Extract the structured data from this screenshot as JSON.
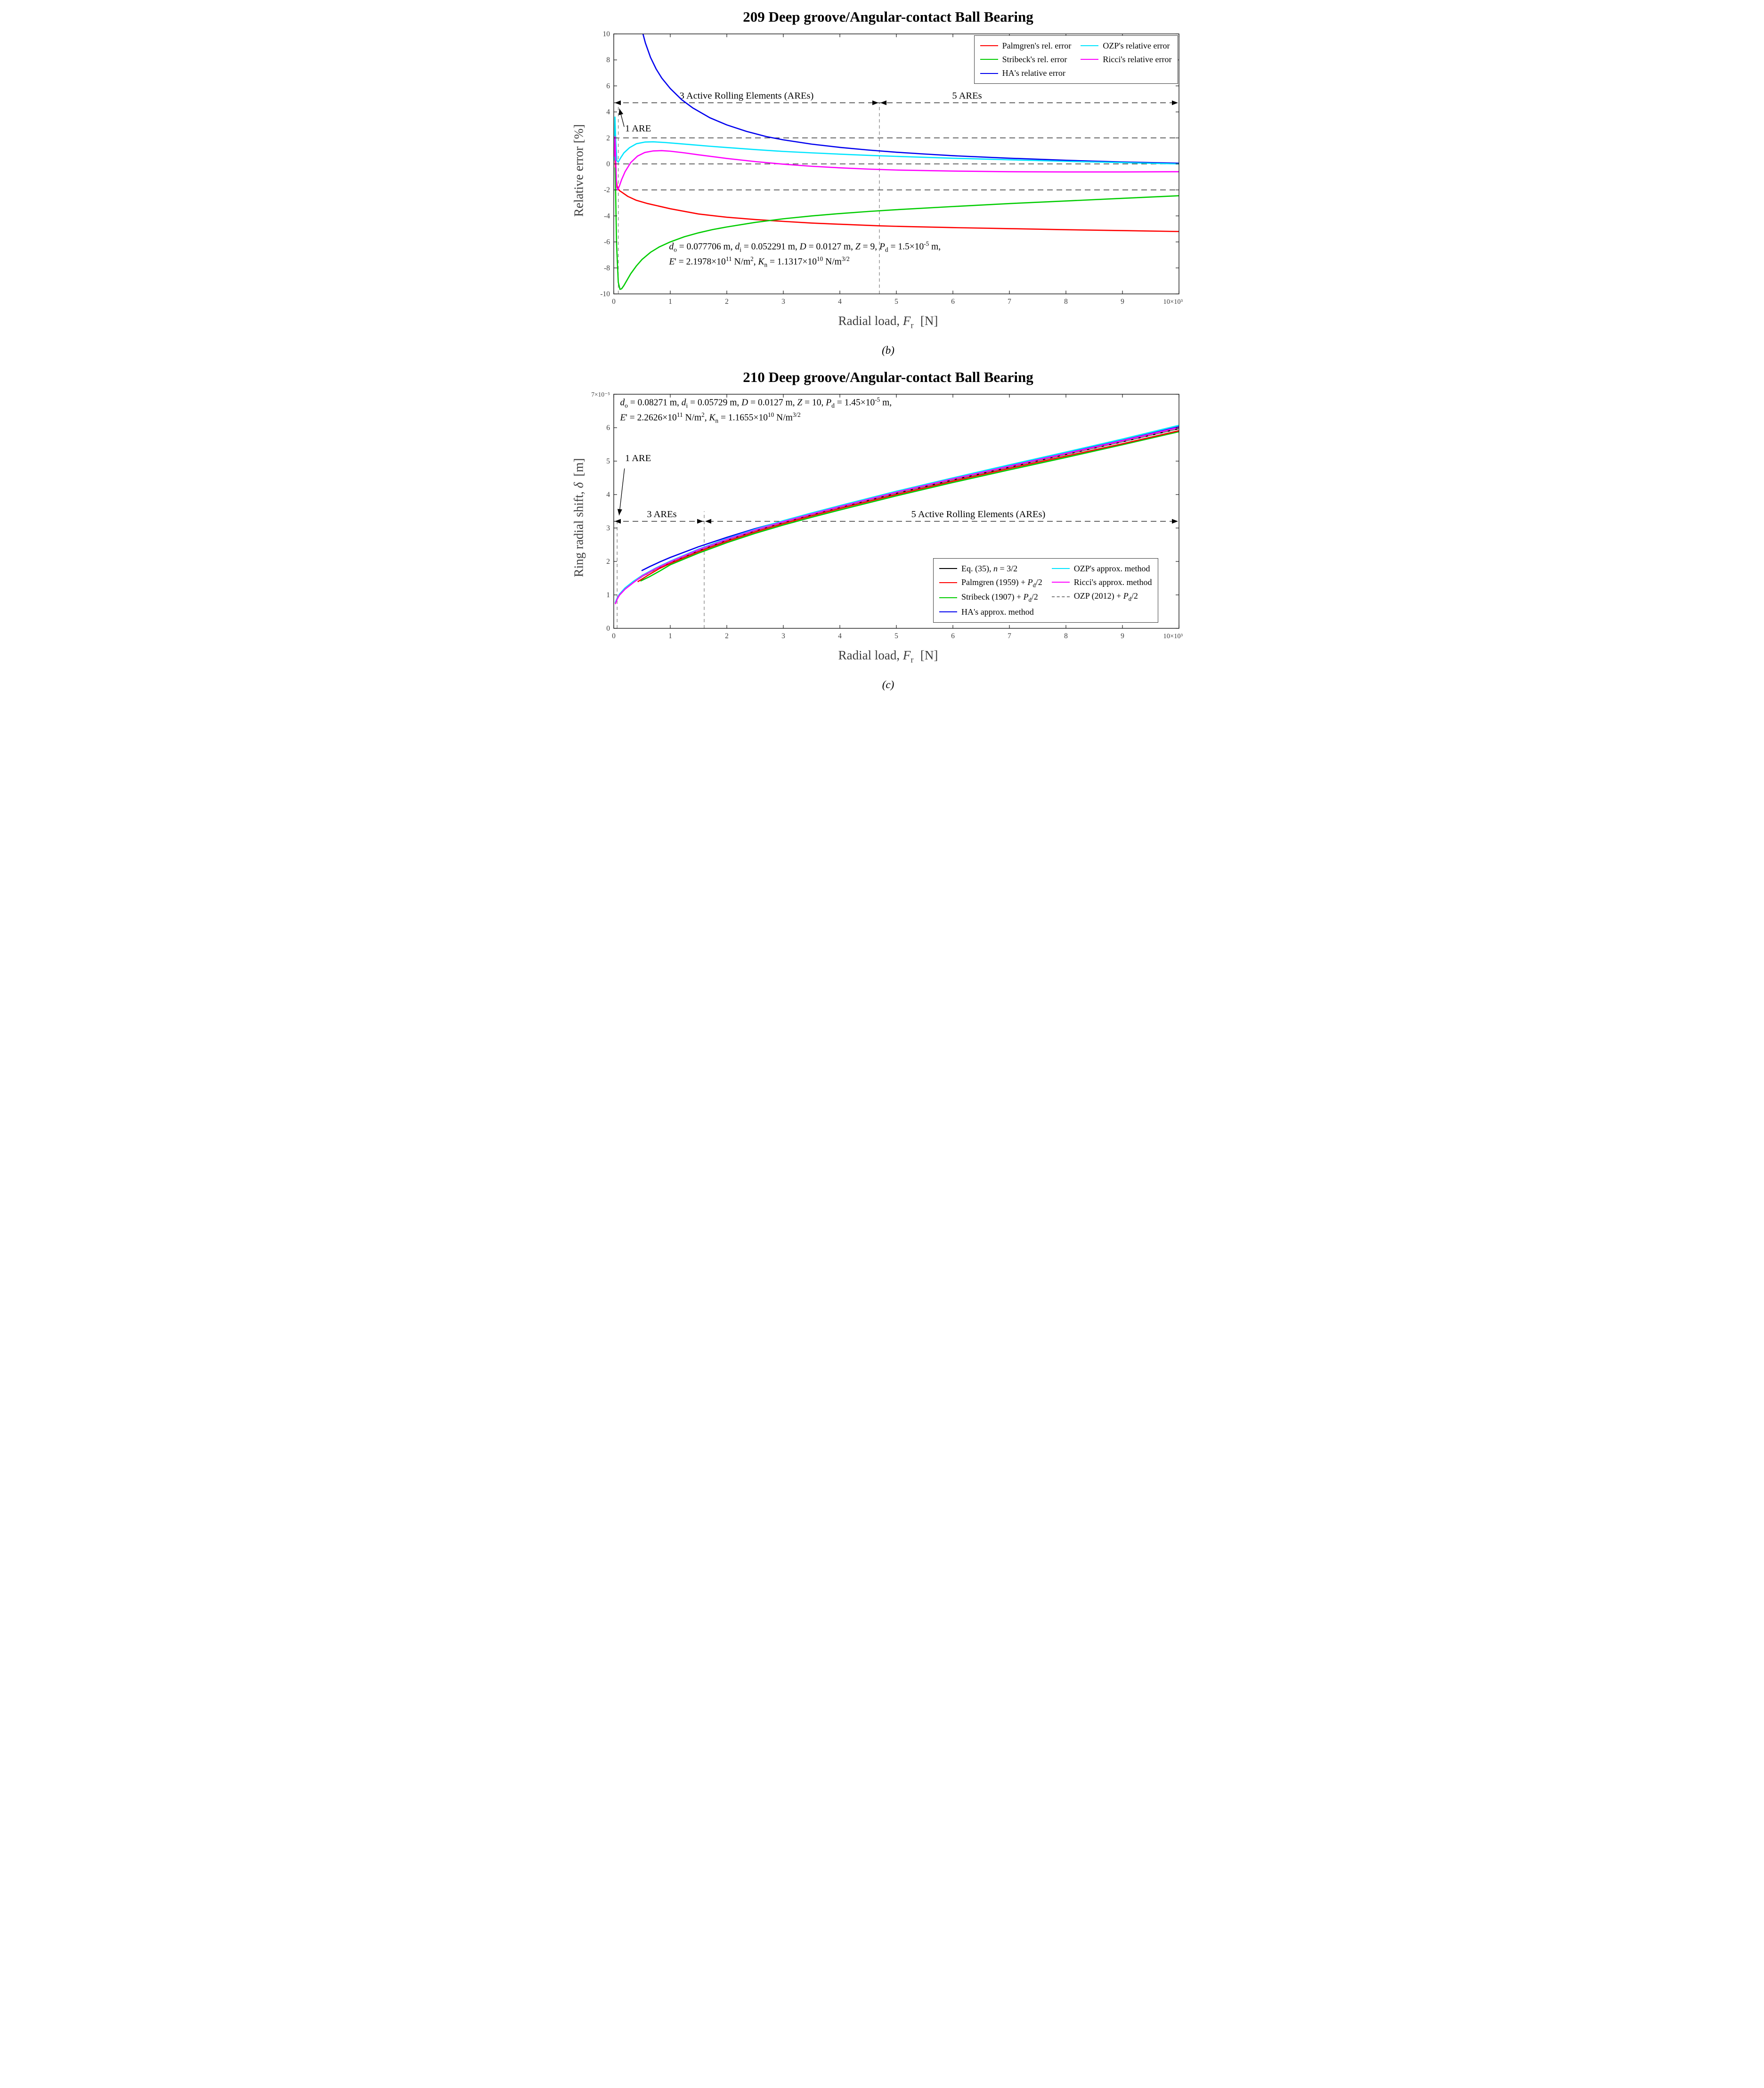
{
  "figure": {
    "sub_labels": [
      "(b)",
      "(c)"
    ]
  },
  "chart_data": [
    {
      "type": "line",
      "title": "209 Deep groove/Angular-contact Ball Bearing",
      "fig_label": "(b)",
      "xlabel_html": "Radial load, <i>F</i><sub>r</sub>&#8202; &#8201;[N]",
      "ylabel_html": "Relative error [%]",
      "xlim": [
        0,
        10000
      ],
      "ylim": [
        -10,
        10
      ],
      "x_ticks": [
        0,
        1000,
        2000,
        3000,
        4000,
        5000,
        6000,
        7000,
        8000,
        9000,
        10000
      ],
      "x_tick_labels": [
        "0",
        "1",
        "2",
        "3",
        "4",
        "5",
        "6",
        "7",
        "8",
        "9",
        "10×10³"
      ],
      "y_ticks": [
        -10,
        -8,
        -6,
        -4,
        -2,
        0,
        2,
        4,
        6,
        8,
        10
      ],
      "y_tick_labels": [
        "-10",
        "-8",
        "-6",
        "-4",
        "-2",
        "0",
        "2",
        "4",
        "6",
        "8",
        "10"
      ],
      "h_dash": [
        2,
        0,
        -2
      ],
      "v_dash": [
        {
          "x": 80,
          "y1": -10,
          "y2": 4.7
        },
        {
          "x": 4700,
          "y1": -10,
          "y2": 4.7
        }
      ],
      "range": {
        "y": 4.7,
        "splits": [
          4700
        ],
        "labels": [
          {
            "text": "3 Active Rolling Elements (AREs)",
            "x": 2350
          },
          {
            "text": "5 AREs",
            "x": 6250
          }
        ]
      },
      "point_labels": [
        {
          "text": "1 ARE",
          "tx": 200,
          "ty": 2.5,
          "lx1": 185,
          "ly1": 2.85,
          "lx2": 100,
          "ly2": 4.25
        }
      ],
      "params": [
        "<i>d</i><sub>o</sub> = 0.077706 m, <i>d</i><sub>i</sub> = 0.052291 m, <i>D</i> = 0.0127 m, <i>Z</i> = 9, <i>P</i><sub>d</sub> = 1.5×10<sup>-5</sup> m,",
        "<i>E</i>' = 2.1978×10<sup>11</sup> N/m<sup>2</sup>, <i>K</i><sub>n</sub> = 1.1317×10<sup>10</sup> N/m<sup>3/2</sup>"
      ],
      "series": [
        {
          "name": "Palmgren's rel. error",
          "color": "#ff0000",
          "dash": false,
          "x": [
            12,
            35,
            60,
            100,
            150,
            250,
            400,
            600,
            800,
            1000,
            1500,
            2000,
            2500,
            3000,
            3500,
            4000,
            4700,
            5000,
            6000,
            7000,
            8000,
            9000,
            10000
          ],
          "y": [
            1.9,
            -0.9,
            -1.75,
            -2.05,
            -2.2,
            -2.5,
            -2.8,
            -3.05,
            -3.25,
            -3.45,
            -3.85,
            -4.1,
            -4.28,
            -4.42,
            -4.55,
            -4.64,
            -4.76,
            -4.8,
            -4.9,
            -4.98,
            -5.06,
            -5.13,
            -5.2
          ]
        },
        {
          "name": "Stribeck's rel. error",
          "color": "#00cc00",
          "dash": false,
          "x": [
            25,
            50,
            80,
            110,
            140,
            180,
            220,
            300,
            400,
            500,
            650,
            800,
            1000,
            1250,
            1500,
            1750,
            2000,
            2500,
            3000,
            3500,
            4000,
            4500,
            5000,
            6000,
            7000,
            8000,
            9000,
            10000
          ],
          "y": [
            -0.3,
            -6.2,
            -9.1,
            -9.65,
            -9.6,
            -9.35,
            -9.05,
            -8.45,
            -7.85,
            -7.35,
            -6.8,
            -6.4,
            -6.0,
            -5.6,
            -5.3,
            -5.05,
            -4.85,
            -4.5,
            -4.22,
            -4.0,
            -3.82,
            -3.66,
            -3.52,
            -3.28,
            -3.05,
            -2.85,
            -2.65,
            -2.45
          ]
        },
        {
          "name": "HA's relative error",
          "color": "#0000ee",
          "dash": false,
          "x": [
            480,
            560,
            650,
            750,
            850,
            1000,
            1200,
            1400,
            1700,
            2000,
            2350,
            2700,
            3000,
            3500,
            4000,
            4500,
            5000,
            5500,
            6000,
            7000,
            8000,
            9000,
            10000
          ],
          "y": [
            10.6,
            9.3,
            8.2,
            7.3,
            6.6,
            5.8,
            4.95,
            4.3,
            3.55,
            3.0,
            2.5,
            2.1,
            1.85,
            1.52,
            1.27,
            1.07,
            0.9,
            0.76,
            0.63,
            0.44,
            0.28,
            0.15,
            0.05
          ]
        },
        {
          "name": "OZP's relative error",
          "color": "#00e5ff",
          "dash": false,
          "x": [
            10,
            22,
            35,
            55,
            80,
            120,
            180,
            280,
            400,
            550,
            700,
            900,
            1100,
            1400,
            1700,
            2000,
            2500,
            3000,
            3500,
            4000,
            4500,
            5000,
            6000,
            7000,
            8000,
            9000,
            10000
          ],
          "y": [
            0.3,
            3.6,
            1.8,
            0.25,
            0.15,
            0.45,
            0.85,
            1.25,
            1.55,
            1.68,
            1.7,
            1.65,
            1.58,
            1.47,
            1.36,
            1.26,
            1.1,
            0.96,
            0.85,
            0.75,
            0.66,
            0.58,
            0.44,
            0.32,
            0.2,
            0.1,
            0.0
          ]
        },
        {
          "name": "Ricci's relative error",
          "color": "#ff00ff",
          "dash": false,
          "x": [
            10,
            22,
            35,
            50,
            70,
            100,
            140,
            200,
            300,
            420,
            550,
            700,
            850,
            1000,
            1250,
            1500,
            2000,
            2500,
            3000,
            3500,
            4000,
            4500,
            5000,
            6000,
            7000,
            8000,
            9000,
            10000
          ],
          "y": [
            0.6,
            2.1,
            0.3,
            -1.75,
            -2.0,
            -1.7,
            -1.2,
            -0.6,
            0.1,
            0.6,
            0.88,
            1.0,
            1.02,
            0.98,
            0.85,
            0.7,
            0.42,
            0.18,
            -0.02,
            -0.18,
            -0.3,
            -0.4,
            -0.47,
            -0.55,
            -0.6,
            -0.62,
            -0.62,
            -0.6
          ]
        }
      ],
      "legend": {
        "columns": [
          [
            {
              "label": "Palmgren's rel. error",
              "color": "#ff0000",
              "dash": false
            },
            {
              "label": "Stribeck's rel. error",
              "color": "#00cc00",
              "dash": false
            },
            {
              "label": "HA's relative error",
              "color": "#0000ee",
              "dash": false
            }
          ],
          [
            {
              "label": "OZP's relative error",
              "color": "#00e5ff",
              "dash": false
            },
            {
              "label": "Ricci's relative error",
              "color": "#ff00ff",
              "dash": false
            }
          ]
        ]
      }
    },
    {
      "type": "line",
      "title": "210 Deep groove/Angular-contact Ball Bearing",
      "fig_label": "(c)",
      "xlabel_html": "Radial load, <i>F</i><sub>r</sub>&#8202; &#8201;[N]",
      "ylabel_html": "Ring radial shift, <i>δ</i>&#8201; [m]",
      "xlim": [
        0,
        10000
      ],
      "ylim": [
        0,
        7
      ],
      "x_ticks": [
        0,
        1000,
        2000,
        3000,
        4000,
        5000,
        6000,
        7000,
        8000,
        9000,
        10000
      ],
      "x_tick_labels": [
        "0",
        "1",
        "2",
        "3",
        "4",
        "5",
        "6",
        "7",
        "8",
        "9",
        "10×10³"
      ],
      "y_ticks": [
        0,
        1,
        2,
        3,
        4,
        5,
        6,
        7
      ],
      "y_tick_labels": [
        "0",
        "1",
        "2",
        "3",
        "4",
        "5",
        "6",
        "7×10⁻⁵"
      ],
      "h_dash": [],
      "v_dash": [
        {
          "x": 60,
          "y1": 0,
          "y2": 3.3
        },
        {
          "x": 1600,
          "y1": 0,
          "y2": 3.5
        }
      ],
      "range": {
        "y": 3.2,
        "splits": [
          1600
        ],
        "labels": [
          {
            "text": "3 AREs",
            "x": 850
          },
          {
            "text": "5 Active Rolling Elements (AREs)",
            "x": 6450
          }
        ]
      },
      "point_labels": [
        {
          "text": "1 ARE",
          "tx": 200,
          "ty": 5.0,
          "lx1": 190,
          "ly1": 4.78,
          "lx2": 95,
          "ly2": 3.38
        }
      ],
      "params": [
        "<i>d</i><sub>o</sub> = 0.08271 m, <i>d</i><sub>i</sub> = 0.05729 m, <i>D</i> = 0.0127 m, <i>Z</i> = 10, <i>P</i><sub>d</sub> = 1.45×10<sup>-5</sup> m,",
        "<i>E</i>' = 2.2626×10<sup>11</sup> N/m<sup>2</sup>, <i>K</i><sub>n</sub> = 1.1655×10<sup>10</sup> N/m<sup>3/2</sup>"
      ],
      "series": [
        {
          "name": "Eq. (35), n = 3/2",
          "color": "#000000",
          "dash": false,
          "x": [
            30,
            60,
            100,
            200,
            350,
            500,
            750,
            1000,
            1500,
            2000,
            2500,
            3000,
            3500,
            4000,
            5000,
            6000,
            7000,
            8000,
            9000,
            10000
          ],
          "y": [
            0.76,
            0.88,
            1.0,
            1.18,
            1.38,
            1.55,
            1.78,
            1.97,
            2.33,
            2.64,
            2.92,
            3.17,
            3.4,
            3.62,
            4.04,
            4.44,
            4.82,
            5.2,
            5.58,
            5.97
          ]
        },
        {
          "name": "OZP (2012) + Pd/2",
          "color": "#808080",
          "dash": true,
          "x": [
            30,
            60,
            100,
            200,
            350,
            500,
            750,
            1000,
            1500,
            2000,
            2500,
            3000,
            3500,
            4000,
            5000,
            6000,
            7000,
            8000,
            9000,
            10000
          ],
          "y": [
            0.76,
            0.88,
            1.0,
            1.18,
            1.38,
            1.55,
            1.78,
            1.97,
            2.33,
            2.64,
            2.92,
            3.17,
            3.4,
            3.62,
            4.04,
            4.44,
            4.82,
            5.2,
            5.58,
            5.97
          ]
        },
        {
          "name": "Stribeck (1907) + Pd/2",
          "color": "#00cc00",
          "dash": false,
          "x": [
            480,
            640,
            820,
            1000,
            1500,
            2000,
            2500,
            3000,
            3500,
            4000,
            5000,
            6000,
            7000,
            8000,
            9000,
            10000
          ],
          "y": [
            1.42,
            1.55,
            1.72,
            1.9,
            2.25,
            2.56,
            2.84,
            3.09,
            3.32,
            3.54,
            3.96,
            4.36,
            4.74,
            5.11,
            5.49,
            5.88
          ]
        },
        {
          "name": "Palmgren (1959) + Pd/2",
          "color": "#ff0000",
          "dash": false,
          "x": [
            430,
            600,
            800,
            1000,
            1500,
            2000,
            2500,
            3000,
            3500,
            4000,
            5000,
            6000,
            7000,
            8000,
            9000,
            10000
          ],
          "y": [
            1.4,
            1.58,
            1.78,
            1.94,
            2.29,
            2.6,
            2.88,
            3.13,
            3.36,
            3.58,
            4.0,
            4.4,
            4.78,
            5.15,
            5.52,
            5.91
          ]
        },
        {
          "name": "HA's approx. method",
          "color": "#0000ee",
          "dash": false,
          "x": [
            500,
            640,
            820,
            1000,
            1500,
            2000,
            2500,
            3000,
            3500,
            4000,
            5000,
            6000,
            7000,
            8000,
            9000,
            10000
          ],
          "y": [
            1.73,
            1.85,
            1.99,
            2.12,
            2.44,
            2.72,
            2.98,
            3.21,
            3.44,
            3.66,
            4.08,
            4.48,
            4.86,
            5.24,
            5.62,
            6.03
          ]
        },
        {
          "name": "OZP's approx. method",
          "color": "#00e5ff",
          "dash": false,
          "x": [
            30,
            60,
            100,
            200,
            350,
            500,
            750,
            1000,
            1500,
            2000,
            2500,
            3000,
            3500,
            4000,
            5000,
            6000,
            7000,
            8000,
            9000,
            10000
          ],
          "y": [
            0.78,
            0.9,
            1.02,
            1.21,
            1.41,
            1.58,
            1.81,
            2.01,
            2.37,
            2.68,
            2.96,
            3.22,
            3.45,
            3.67,
            4.1,
            4.5,
            4.89,
            5.27,
            5.66,
            6.07
          ]
        },
        {
          "name": "Ricci's approx. method",
          "color": "#ff00ff",
          "dash": false,
          "x": [
            30,
            60,
            100,
            200,
            350,
            500,
            750,
            1000,
            1500,
            2000,
            2500,
            3000,
            3500,
            4000,
            5000,
            6000,
            7000,
            8000,
            9000,
            10000
          ],
          "y": [
            0.74,
            0.87,
            0.99,
            1.17,
            1.37,
            1.56,
            1.79,
            1.99,
            2.35,
            2.66,
            2.94,
            3.19,
            3.42,
            3.64,
            4.07,
            4.47,
            4.85,
            5.23,
            5.61,
            6.01
          ]
        }
      ],
      "legend": {
        "columns": [
          [
            {
              "label": "Eq. (35), <i>n</i> = 3/2",
              "color": "#000000",
              "dash": false
            },
            {
              "label": "Palmgren (1959) + <i>P</i><sub>d</sub>/2",
              "color": "#ff0000",
              "dash": false
            },
            {
              "label": "Stribeck (1907) + <i>P</i><sub>d</sub>/2",
              "color": "#00cc00",
              "dash": false
            },
            {
              "label": "HA's approx. method",
              "color": "#0000ee",
              "dash": false
            }
          ],
          [
            {
              "label": "OZP's approx. method",
              "color": "#00e5ff",
              "dash": false
            },
            {
              "label": "Ricci's approx. method",
              "color": "#ff00ff",
              "dash": false
            },
            {
              "label": "OZP (2012) + <i>P</i><sub>d</sub>/2",
              "color": "#808080",
              "dash": true
            }
          ]
        ]
      }
    }
  ]
}
